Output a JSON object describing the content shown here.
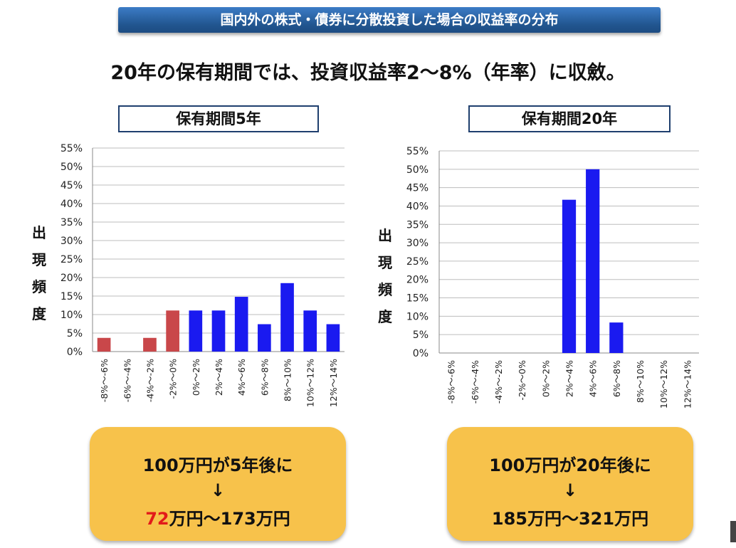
{
  "banner": "国内外の株式・債券に分散投資した場合の収益率の分布",
  "subtitle": "20年の保有期間では、投資収益率2～8%（年率）に収斂。",
  "colors": {
    "negative": "#c9474a",
    "positive": "#1a1af0",
    "box": "#f7c24b",
    "highlight": "#e21a1a"
  },
  "charts": [
    {
      "title": "保有期間5年",
      "ylabel": [
        "出",
        "現",
        "頻",
        "度"
      ],
      "result": {
        "line1": "100万円が5年後に",
        "arrow": "↓",
        "low": "72",
        "rest": "万円～173万円"
      }
    },
    {
      "title": "保有期間20年",
      "ylabel": [
        "出",
        "現",
        "頻",
        "度"
      ],
      "result": {
        "line1": "100万円が20年後に",
        "arrow": "↓",
        "full": "185万円～321万円"
      }
    }
  ],
  "chart_data": [
    {
      "type": "bar",
      "title": "保有期間5年",
      "categories": [
        "-8%～-6%",
        "-6%～-4%",
        "-4%～-2%",
        "-2%～0%",
        "0%～2%",
        "2%～4%",
        "4%～6%",
        "6%～8%",
        "8%～10%",
        "10%～12%",
        "12%～14%"
      ],
      "values": [
        3.7,
        0,
        3.7,
        11.1,
        11.1,
        11.1,
        14.8,
        7.4,
        18.5,
        11.1,
        7.4
      ],
      "colors": [
        "negative",
        "negative",
        "negative",
        "negative",
        "positive",
        "positive",
        "positive",
        "positive",
        "positive",
        "positive",
        "positive"
      ],
      "yticks": [
        "0%",
        "5%",
        "10%",
        "15%",
        "20%",
        "25%",
        "30%",
        "35%",
        "40%",
        "45%",
        "50%",
        "55%"
      ],
      "ylim": [
        0,
        55
      ],
      "grid": true
    },
    {
      "type": "bar",
      "title": "保有期間20年",
      "categories": [
        "-8%～-6%",
        "-6%～-4%",
        "-4%～-2%",
        "-2%～0%",
        "0%～2%",
        "2%～4%",
        "4%～6%",
        "6%～8%",
        "8%～10%",
        "10%～12%",
        "12%～14%"
      ],
      "values": [
        0,
        0,
        0,
        0,
        0,
        41.7,
        50.0,
        8.3,
        0,
        0,
        0
      ],
      "colors": [
        "positive",
        "positive",
        "positive",
        "positive",
        "positive",
        "positive",
        "positive",
        "positive",
        "positive",
        "positive",
        "positive"
      ],
      "yticks": [
        "0%",
        "5%",
        "10%",
        "15%",
        "20%",
        "25%",
        "30%",
        "35%",
        "40%",
        "45%",
        "50%",
        "55%"
      ],
      "ylim": [
        0,
        55
      ],
      "grid": true
    }
  ]
}
